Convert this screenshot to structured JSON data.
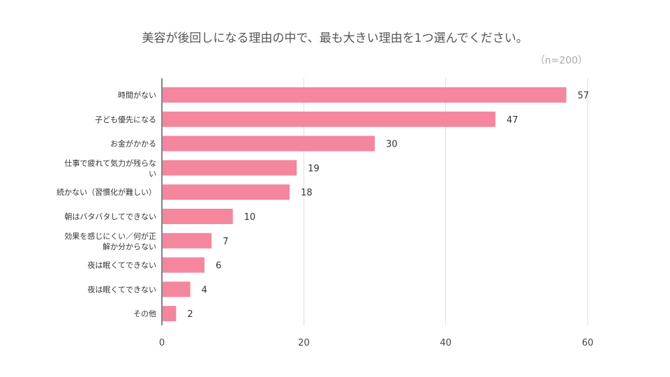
{
  "chart_data": {
    "type": "bar",
    "orientation": "horizontal",
    "title": "美容が後回しになる理由の中で、最も大きい理由を1つ選んでください。",
    "subtitle": "（n=200）",
    "categories": [
      [
        "時間がない"
      ],
      [
        "子ども優先になる"
      ],
      [
        "お金がかかる"
      ],
      [
        "仕事で疲れて気力が残らな",
        "い"
      ],
      [
        "続かない（習慣化が難しい）"
      ],
      [
        "朝はバタバタしてできない"
      ],
      [
        "効果を感じにくい／何が正",
        "解か分からない"
      ],
      [
        "夜は眠くてできない"
      ],
      [
        "夜は眠くてできない"
      ],
      [
        "その他"
      ]
    ],
    "values": [
      57,
      47,
      30,
      19,
      18,
      10,
      7,
      6,
      4,
      2
    ],
    "xlim": [
      0,
      60
    ],
    "xticks": [
      0,
      20,
      40,
      60
    ],
    "grid": true,
    "bar_color": "#f4869e",
    "xlabel": "",
    "ylabel": ""
  }
}
